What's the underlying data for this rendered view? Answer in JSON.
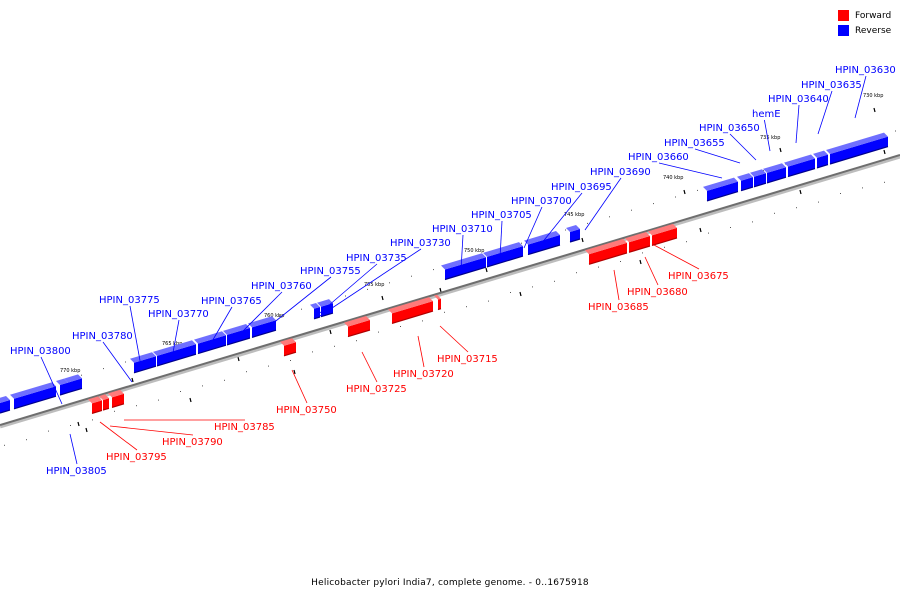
{
  "legend": {
    "forward": {
      "label": "Forward",
      "color": "#ff0000"
    },
    "reverse": {
      "label": "Reverse",
      "color": "#0000ff"
    }
  },
  "caption": "Helicobacter pylori India7, complete genome. - 0..1675918",
  "ticks": [
    "730 kbp",
    "735 kbp",
    "740 kbp",
    "745 kbp",
    "750 kbp",
    "755 kbp",
    "760 kbp",
    "765 kbp",
    "770 kbp"
  ],
  "genes": [
    {
      "label": "HPIN_03630",
      "strand": "reverse"
    },
    {
      "label": "HPIN_03635",
      "strand": "reverse"
    },
    {
      "label": "HPIN_03640",
      "strand": "reverse"
    },
    {
      "label": "hemE",
      "strand": "reverse"
    },
    {
      "label": "HPIN_03650",
      "strand": "reverse"
    },
    {
      "label": "HPIN_03655",
      "strand": "reverse"
    },
    {
      "label": "HPIN_03660",
      "strand": "reverse"
    },
    {
      "label": "HPIN_03690",
      "strand": "reverse"
    },
    {
      "label": "HPIN_03695",
      "strand": "reverse"
    },
    {
      "label": "HPIN_03700",
      "strand": "reverse"
    },
    {
      "label": "HPIN_03705",
      "strand": "reverse"
    },
    {
      "label": "HPIN_03710",
      "strand": "reverse"
    },
    {
      "label": "HPIN_03730",
      "strand": "reverse"
    },
    {
      "label": "HPIN_03735",
      "strand": "reverse"
    },
    {
      "label": "HPIN_03755",
      "strand": "reverse"
    },
    {
      "label": "HPIN_03760",
      "strand": "reverse"
    },
    {
      "label": "HPIN_03765",
      "strand": "reverse"
    },
    {
      "label": "HPIN_03770",
      "strand": "reverse"
    },
    {
      "label": "HPIN_03775",
      "strand": "reverse"
    },
    {
      "label": "HPIN_03780",
      "strand": "reverse"
    },
    {
      "label": "HPIN_03800",
      "strand": "reverse"
    },
    {
      "label": "HPIN_03805",
      "strand": "reverse"
    },
    {
      "label": "HPIN_03675",
      "strand": "forward"
    },
    {
      "label": "HPIN_03680",
      "strand": "forward"
    },
    {
      "label": "HPIN_03685",
      "strand": "forward"
    },
    {
      "label": "HPIN_03715",
      "strand": "forward"
    },
    {
      "label": "HPIN_03720",
      "strand": "forward"
    },
    {
      "label": "HPIN_03725",
      "strand": "forward"
    },
    {
      "label": "HPIN_03750",
      "strand": "forward"
    },
    {
      "label": "HPIN_03785",
      "strand": "forward"
    },
    {
      "label": "HPIN_03790",
      "strand": "forward"
    },
    {
      "label": "HPIN_03795",
      "strand": "forward"
    }
  ]
}
